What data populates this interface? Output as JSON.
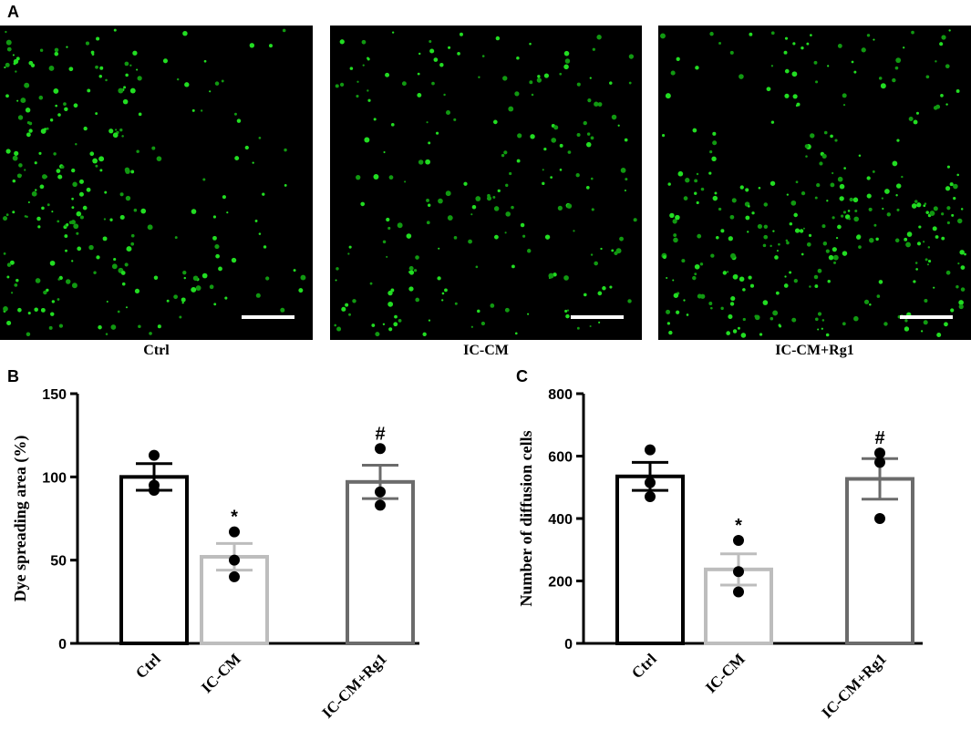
{
  "figure": {
    "panel_labels": [
      "A",
      "B",
      "C"
    ],
    "image_captions": [
      "Ctrl",
      "IC-CM",
      "IC-CM+Rg1"
    ]
  },
  "chart_data": [
    {
      "type": "bar",
      "y_label": "Dye spreading area (%)",
      "categories": [
        "Ctrl",
        "IC-CM",
        "IC-CM+Rg1"
      ],
      "values": [
        100,
        52,
        97
      ],
      "errors": [
        8,
        8,
        10
      ],
      "points": [
        [
          113,
          95,
          92
        ],
        [
          67,
          50,
          40
        ],
        [
          117,
          91,
          83
        ]
      ],
      "annotations": [
        null,
        "*",
        "#"
      ],
      "colors": [
        "#000000",
        "#bdbdbd",
        "#6b6b6b"
      ],
      "ylim": [
        0,
        150
      ],
      "yticks": [
        0,
        50,
        100,
        150
      ]
    },
    {
      "type": "bar",
      "y_label": "Number of diffusion cells",
      "categories": [
        "Ctrl",
        "IC-CM",
        "IC-CM+Rg1"
      ],
      "values": [
        535,
        237,
        527
      ],
      "errors": [
        45,
        50,
        65
      ],
      "points": [
        [
          620,
          515,
          470
        ],
        [
          330,
          230,
          165
        ],
        [
          610,
          580,
          400
        ]
      ],
      "annotations": [
        null,
        "*",
        "#"
      ],
      "colors": [
        "#000000",
        "#bdbdbd",
        "#6b6b6b"
      ],
      "ylim": [
        0,
        800
      ],
      "yticks": [
        0,
        200,
        400,
        600,
        800
      ]
    }
  ]
}
